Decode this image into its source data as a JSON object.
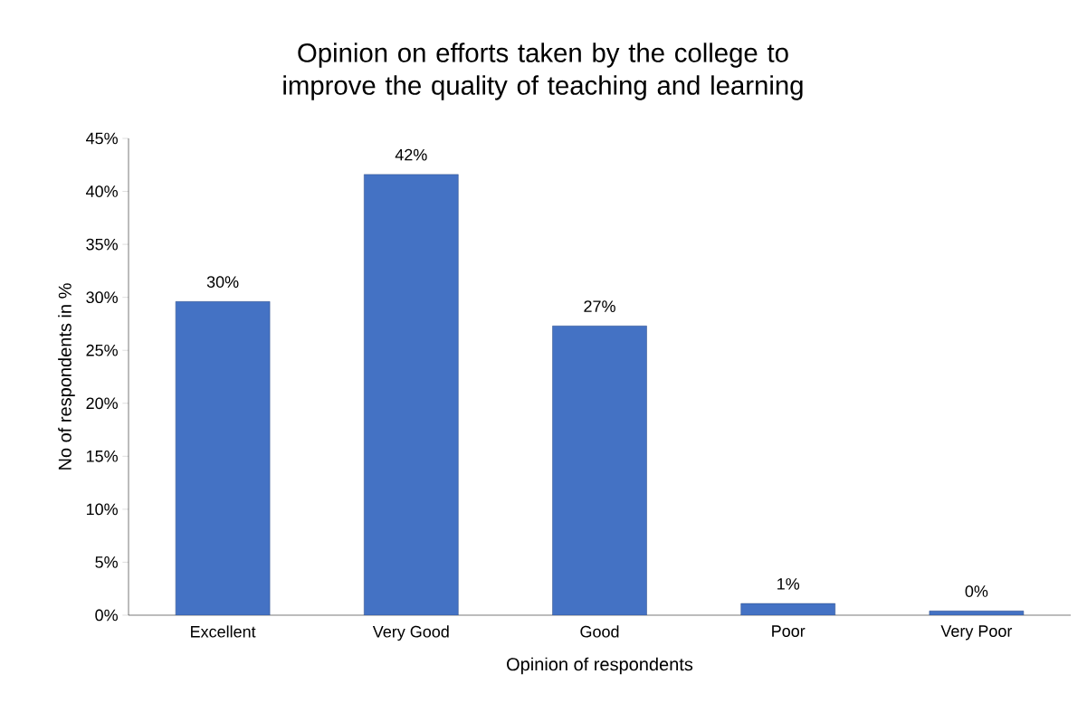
{
  "chart_data": {
    "type": "bar",
    "title": "Opinion on efforts taken by the college to improve the quality of teaching and learning",
    "xlabel": "Opinion of respondents",
    "ylabel": "No of respondents in %",
    "categories": [
      "Excellent",
      "Very Good",
      "Good",
      "Poor",
      "Very Poor"
    ],
    "values": [
      29.6,
      41.6,
      27.3,
      1.1,
      0.4
    ],
    "value_labels": [
      "30%",
      "42%",
      "27%",
      "1%",
      "0%"
    ],
    "color": "#4472c4",
    "ylim": [
      0,
      45
    ],
    "yticks": [
      {
        "value": 0,
        "label": "0%"
      },
      {
        "value": 5,
        "label": "5%"
      },
      {
        "value": 10,
        "label": "10%"
      },
      {
        "value": 15,
        "label": "15%"
      },
      {
        "value": 20,
        "label": "20%"
      },
      {
        "value": 25,
        "label": "25%"
      },
      {
        "value": 30,
        "label": "30%"
      },
      {
        "value": 35,
        "label": "35%"
      },
      {
        "value": 40,
        "label": "40%"
      },
      {
        "value": 45,
        "label": "45%"
      }
    ],
    "grid": false
  }
}
